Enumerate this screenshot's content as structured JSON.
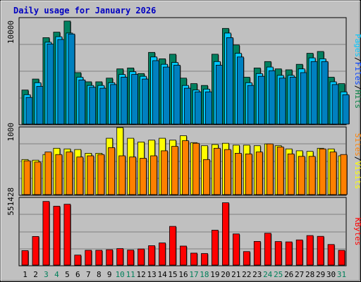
{
  "chart_data": [
    {
      "type": "bar",
      "title": "Daily usage for January 2026",
      "ylabel_parts": [
        "Pages",
        "Files",
        "Hits"
      ],
      "ylabel_colors": [
        "#00C8FF",
        "#0040FF",
        "#008040"
      ],
      "ytick": "10000",
      "ylim": [
        0,
        11500
      ],
      "categories": [
        "1",
        "2",
        "3",
        "4",
        "5",
        "6",
        "7",
        "8",
        "9",
        "10",
        "11",
        "12",
        "13",
        "14",
        "15",
        "16",
        "17",
        "18",
        "19",
        "20",
        "21",
        "22",
        "23",
        "24",
        "25",
        "26",
        "27",
        "28",
        "29",
        "30",
        "31"
      ],
      "weekend_days": [
        "3",
        "4",
        "10",
        "11",
        "17",
        "18",
        "24",
        "25",
        "31"
      ],
      "series": [
        {
          "name": "Hits",
          "color": "#008060",
          "values": [
            3700,
            4900,
            9400,
            10000,
            11200,
            5600,
            4600,
            4600,
            5000,
            6000,
            6100,
            5500,
            7800,
            7100,
            7600,
            5000,
            4400,
            4200,
            7600,
            10400,
            8600,
            5100,
            6100,
            6800,
            6000,
            5900,
            6500,
            7700,
            7900,
            5100,
            4400
          ]
        },
        {
          "name": "Files",
          "color": "#00C8FF",
          "values": [
            3200,
            4500,
            8900,
            9500,
            9900,
            5100,
            4200,
            4200,
            4500,
            5400,
            5700,
            5200,
            7300,
            6500,
            6700,
            4200,
            3700,
            3800,
            6800,
            9900,
            7700,
            4500,
            5500,
            6200,
            5300,
            5300,
            6000,
            7200,
            7100,
            4600,
            3500
          ]
        },
        {
          "name": "Pages",
          "color": "#0080C0",
          "values": [
            2900,
            4100,
            8700,
            9200,
            9800,
            4800,
            4000,
            3900,
            4300,
            5100,
            5400,
            4900,
            6900,
            6200,
            6400,
            3900,
            3500,
            3500,
            6400,
            9400,
            7300,
            4200,
            5200,
            5800,
            5000,
            5100,
            5600,
            6800,
            6800,
            4300,
            3200
          ]
        }
      ]
    },
    {
      "type": "bar",
      "ylabel_parts": [
        "Sites",
        "Visits"
      ],
      "ylabel_colors": [
        "#FF8000",
        "#FFFF00"
      ],
      "ytick": "1000",
      "ylim": [
        0,
        1070
      ],
      "categories": [
        "1",
        "2",
        "3",
        "4",
        "5",
        "6",
        "7",
        "8",
        "9",
        "10",
        "11",
        "12",
        "13",
        "14",
        "15",
        "16",
        "17",
        "18",
        "19",
        "20",
        "21",
        "22",
        "23",
        "24",
        "25",
        "26",
        "27",
        "28",
        "29",
        "30",
        "31"
      ],
      "series": [
        {
          "name": "Visits",
          "color": "#FFFF00",
          "values": [
            560,
            550,
            640,
            740,
            730,
            720,
            660,
            660,
            900,
            1070,
            900,
            840,
            870,
            900,
            870,
            940,
            830,
            780,
            800,
            820,
            790,
            790,
            780,
            810,
            780,
            730,
            700,
            690,
            740,
            730,
            620
          ]
        },
        {
          "name": "Sites",
          "color": "#FF8000",
          "values": [
            540,
            520,
            680,
            640,
            680,
            600,
            620,
            640,
            750,
            620,
            600,
            580,
            620,
            700,
            770,
            860,
            820,
            560,
            740,
            720,
            660,
            650,
            680,
            810,
            760,
            650,
            610,
            610,
            730,
            680,
            640
          ]
        }
      ]
    },
    {
      "type": "bar",
      "ylabel_parts": [
        "KBytes"
      ],
      "ylabel_colors": [
        "#FF0000"
      ],
      "ytick": "551428",
      "ylim": [
        0,
        580000
      ],
      "categories": [
        "1",
        "2",
        "3",
        "4",
        "5",
        "6",
        "7",
        "8",
        "9",
        "10",
        "11",
        "12",
        "13",
        "14",
        "15",
        "16",
        "17",
        "18",
        "19",
        "20",
        "21",
        "22",
        "23",
        "24",
        "25",
        "26",
        "27",
        "28",
        "29",
        "30",
        "31"
      ],
      "series": [
        {
          "name": "KBytes",
          "color": "#FF0000",
          "values": [
            125000,
            248000,
            551428,
            510000,
            527000,
            87000,
            128000,
            128000,
            133000,
            143000,
            130000,
            140000,
            168000,
            192000,
            335000,
            165000,
            104000,
            100000,
            302000,
            540000,
            270000,
            117000,
            205000,
            276000,
            204000,
            201000,
            218000,
            256000,
            249000,
            178000,
            128000
          ]
        }
      ]
    }
  ]
}
